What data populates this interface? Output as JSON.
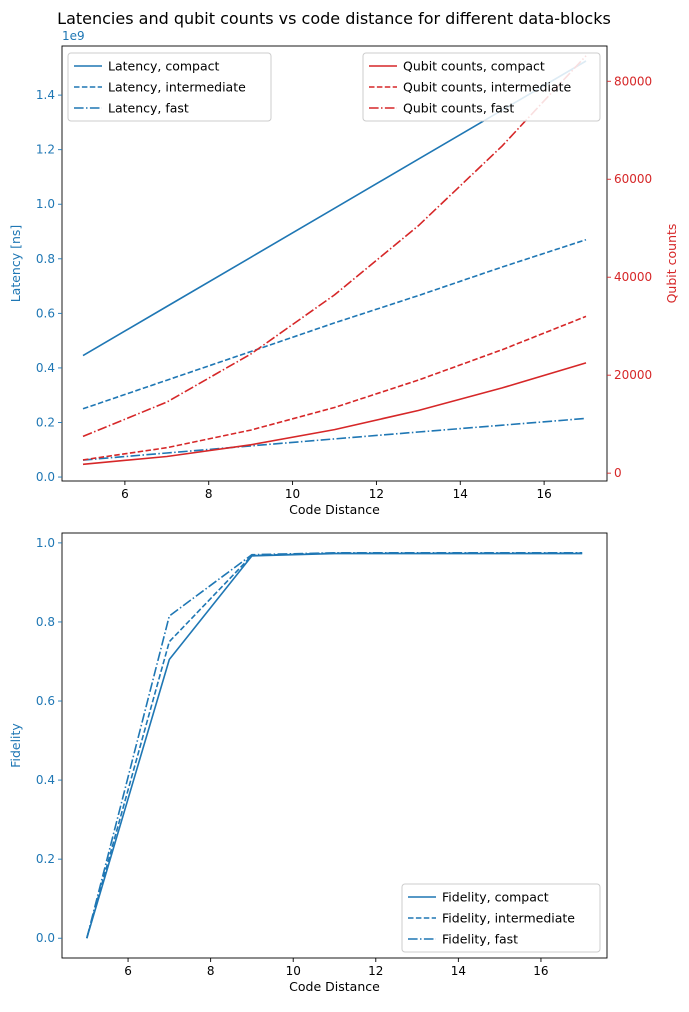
{
  "colors": {
    "blue": "#1f77b4",
    "red": "#d62728",
    "frame": "#000000",
    "legend_border": "#cccccc"
  },
  "chart_data": [
    {
      "type": "line",
      "title": "Latencies and qubit counts vs code distance for different data-blocks",
      "xlabel": "Code Distance",
      "ylabel": "Latency [ns]",
      "y2label": "Qubit counts",
      "offset_text": "1e9",
      "xlim": [
        4.5,
        17.5
      ],
      "ylim": [
        -0.0145,
        1.58
      ],
      "y2lim": [
        -1600,
        87200
      ],
      "xticks": [
        6,
        8,
        10,
        12,
        14,
        16
      ],
      "xtick_labels": [
        "6",
        "8",
        "10",
        "12",
        "14",
        "16"
      ],
      "yticks": [
        0.0,
        0.2,
        0.4,
        0.6,
        0.8,
        1.0,
        1.2,
        1.4
      ],
      "ytick_labels": [
        "0.0",
        "0.2",
        "0.4",
        "0.6",
        "0.8",
        "1.0",
        "1.2",
        "1.4"
      ],
      "y2ticks": [
        0,
        20000,
        40000,
        60000,
        80000
      ],
      "y2tick_labels": [
        "0",
        "20000",
        "40000",
        "60000",
        "80000"
      ],
      "grid": false,
      "legend_placement": "upper-left",
      "legend2_placement": "upper-right",
      "series": [
        {
          "name": "Latency, compact",
          "axis": "left",
          "color": "#1f77b4",
          "dash": "solid",
          "x": [
            5,
            7,
            9,
            11,
            13,
            15,
            17
          ],
          "values": [
            0.445,
            0.625,
            0.805,
            0.985,
            1.165,
            1.345,
            1.525
          ]
        },
        {
          "name": "Latency, intermediate",
          "axis": "left",
          "color": "#1f77b4",
          "dash": "dashed",
          "x": [
            5,
            7,
            9,
            11,
            13,
            15,
            17
          ],
          "values": [
            0.25,
            0.355,
            0.46,
            0.565,
            0.665,
            0.77,
            0.87
          ]
        },
        {
          "name": "Latency, fast",
          "axis": "left",
          "color": "#1f77b4",
          "dash": "dashdot",
          "x": [
            5,
            7,
            9,
            11,
            13,
            15,
            17
          ],
          "values": [
            0.062,
            0.088,
            0.114,
            0.14,
            0.165,
            0.19,
            0.215
          ]
        },
        {
          "name": "Qubit counts, compact",
          "axis": "right",
          "color": "#d62728",
          "dash": "solid",
          "x": [
            5,
            7,
            9,
            11,
            13,
            15,
            17
          ],
          "values": [
            1800,
            3400,
            5800,
            8900,
            12800,
            17400,
            22500
          ]
        },
        {
          "name": "Qubit counts, intermediate",
          "axis": "right",
          "color": "#d62728",
          "dash": "dashed",
          "x": [
            5,
            7,
            9,
            11,
            13,
            15,
            17
          ],
          "values": [
            2700,
            5200,
            8800,
            13400,
            19000,
            25200,
            32000
          ]
        },
        {
          "name": "Qubit counts, fast",
          "axis": "right",
          "color": "#d62728",
          "dash": "dashdot",
          "x": [
            5,
            7,
            9,
            11,
            13,
            15,
            17
          ],
          "values": [
            7500,
            14500,
            24300,
            36400,
            50500,
            66800,
            85200
          ]
        }
      ]
    },
    {
      "type": "line",
      "title": "",
      "xlabel": "Code Distance",
      "ylabel": "Fidelity",
      "xlim": [
        4.4,
        17.6
      ],
      "ylim": [
        -0.05,
        1.025
      ],
      "xticks": [
        6,
        8,
        10,
        12,
        14,
        16
      ],
      "xtick_labels": [
        "6",
        "8",
        "10",
        "12",
        "14",
        "16"
      ],
      "yticks": [
        0.0,
        0.2,
        0.4,
        0.6,
        0.8,
        1.0
      ],
      "ytick_labels": [
        "0.0",
        "0.2",
        "0.4",
        "0.6",
        "0.8",
        "1.0"
      ],
      "grid": false,
      "legend_placement": "lower-right",
      "series": [
        {
          "name": "Fidelity, compact",
          "color": "#1f77b4",
          "dash": "solid",
          "x": [
            5,
            7,
            9,
            11,
            13,
            15,
            17
          ],
          "values": [
            0.0,
            0.705,
            0.967,
            0.973,
            0.973,
            0.973,
            0.973
          ]
        },
        {
          "name": "Fidelity, intermediate",
          "color": "#1f77b4",
          "dash": "dashed",
          "x": [
            5,
            7,
            9,
            11,
            13,
            15,
            17
          ],
          "values": [
            0.0,
            0.75,
            0.968,
            0.974,
            0.974,
            0.974,
            0.974
          ]
        },
        {
          "name": "Fidelity, fast",
          "color": "#1f77b4",
          "dash": "dashdot",
          "x": [
            5,
            7,
            9,
            11,
            13,
            15,
            17
          ],
          "values": [
            0.0,
            0.815,
            0.97,
            0.975,
            0.975,
            0.975,
            0.975
          ]
        }
      ]
    }
  ]
}
